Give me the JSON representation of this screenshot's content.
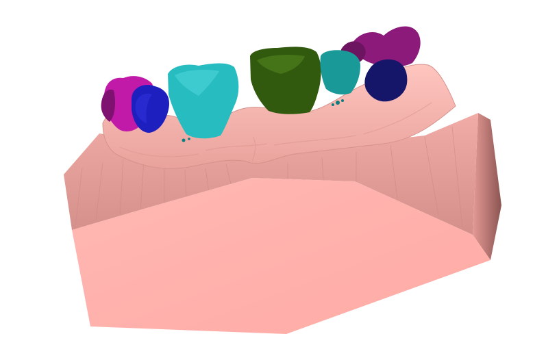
{
  "viewport": {
    "background": "#ffffff"
  },
  "model": {
    "base_colors": {
      "front_face": "#ffb1ac",
      "right_face": "#dc8c88",
      "right_face_dark": "#8f5553",
      "top_band": "#e9a29d",
      "gum": "#f3aaa4",
      "gum_shadow": "#c98882"
    },
    "teeth": [
      {
        "id": "left-molar",
        "color": "#c21aa8"
      },
      {
        "id": "left-premolar",
        "color": "#1d1fbf"
      },
      {
        "id": "left-incisor",
        "color": "#27bcc0"
      },
      {
        "id": "center-incisor",
        "color": "#325a0e"
      },
      {
        "id": "right-incisor",
        "color": "#199a99"
      },
      {
        "id": "right-premolar",
        "color": "#15156a"
      },
      {
        "id": "right-molar",
        "color": "#8c1a7a"
      }
    ]
  }
}
